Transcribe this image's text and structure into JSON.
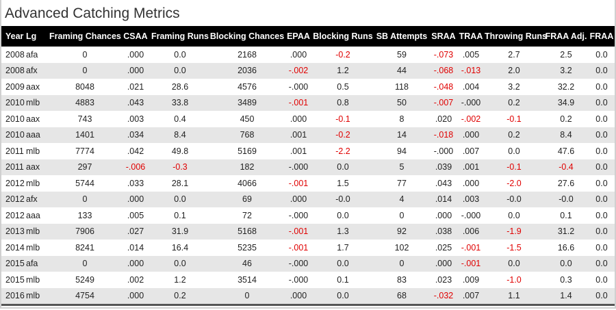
{
  "title": "Advanced Catching Metrics",
  "columns": [
    "Year",
    "Lg",
    "Framing Chances",
    "CSAA",
    "Framing Runs",
    "Blocking Chances",
    "EPAA",
    "Blocking Runs",
    "SB Attempts",
    "SRAA",
    "TRAA",
    "Throwing Runs",
    "FRAA Adj.",
    "FRAA"
  ],
  "rows": [
    [
      "2008",
      "afa",
      "0",
      ".000",
      "0.0",
      "2168",
      ".000",
      "-0.2",
      "59",
      "-.073",
      ".005",
      "2.7",
      "2.5",
      "0.0"
    ],
    [
      "2008",
      "afx",
      "0",
      ".000",
      "0.0",
      "2036",
      "-.002",
      "1.2",
      "44",
      "-.068",
      "-.013",
      "2.0",
      "3.2",
      "0.0"
    ],
    [
      "2009",
      "aax",
      "8048",
      ".021",
      "28.6",
      "4576",
      "-.000",
      "0.5",
      "118",
      "-.048",
      ".004",
      "3.2",
      "32.2",
      "0.0"
    ],
    [
      "2010",
      "mlb",
      "4883",
      ".043",
      "33.8",
      "3489",
      "-.001",
      "0.8",
      "50",
      "-.007",
      "-.000",
      "0.2",
      "34.9",
      "0.0"
    ],
    [
      "2010",
      "aax",
      "743",
      ".003",
      "0.4",
      "450",
      ".000",
      "-0.1",
      "8",
      ".020",
      "-.002",
      "-0.1",
      "0.2",
      "0.0"
    ],
    [
      "2010",
      "aaa",
      "1401",
      ".034",
      "8.4",
      "768",
      ".001",
      "-0.2",
      "14",
      "-.018",
      ".000",
      "0.2",
      "8.4",
      "0.0"
    ],
    [
      "2011",
      "mlb",
      "7774",
      ".042",
      "49.8",
      "5169",
      ".001",
      "-2.2",
      "94",
      "-.000",
      ".007",
      "0.0",
      "47.6",
      "0.0"
    ],
    [
      "2011",
      "aax",
      "297",
      "-.006",
      "-0.3",
      "182",
      "-.000",
      "0.0",
      "5",
      ".039",
      ".001",
      "-0.1",
      "-0.4",
      "0.0"
    ],
    [
      "2012",
      "mlb",
      "5744",
      ".033",
      "28.1",
      "4066",
      "-.001",
      "1.5",
      "77",
      ".043",
      ".000",
      "-2.0",
      "27.6",
      "0.0"
    ],
    [
      "2012",
      "afx",
      "0",
      ".000",
      "0.0",
      "69",
      ".000",
      "-0.0",
      "4",
      ".014",
      ".003",
      "-0.0",
      "-0.0",
      "0.0"
    ],
    [
      "2012",
      "aaa",
      "133",
      ".005",
      "0.1",
      "72",
      "-.000",
      "0.0",
      "0",
      ".000",
      "-.000",
      "0.0",
      "0.1",
      "0.0"
    ],
    [
      "2013",
      "mlb",
      "7906",
      ".027",
      "31.9",
      "5168",
      "-.001",
      "1.3",
      "92",
      ".038",
      ".006",
      "-1.9",
      "31.2",
      "0.0"
    ],
    [
      "2014",
      "mlb",
      "8241",
      ".014",
      "16.4",
      "5235",
      "-.001",
      "1.7",
      "102",
      ".025",
      "-.001",
      "-1.5",
      "16.6",
      "0.0"
    ],
    [
      "2015",
      "afa",
      "0",
      ".000",
      "0.0",
      "46",
      "-.000",
      "0.0",
      "0",
      ".000",
      "-.001",
      "0.0",
      "0.0",
      "0.0"
    ],
    [
      "2015",
      "mlb",
      "5249",
      ".002",
      "1.2",
      "3514",
      "-.000",
      "0.1",
      "83",
      ".023",
      ".009",
      "-1.0",
      "0.3",
      "0.0"
    ],
    [
      "2016",
      "mlb",
      "4754",
      ".000",
      "0.2",
      "0",
      ".000",
      "0.0",
      "68",
      "-.032",
      ".007",
      "1.1",
      "1.4",
      "0.0"
    ]
  ],
  "negative_cells": [
    [
      0,
      7
    ],
    [
      0,
      9
    ],
    [
      1,
      6
    ],
    [
      1,
      9
    ],
    [
      1,
      10
    ],
    [
      2,
      9
    ],
    [
      3,
      6
    ],
    [
      3,
      9
    ],
    [
      4,
      7
    ],
    [
      4,
      10
    ],
    [
      4,
      11
    ],
    [
      5,
      7
    ],
    [
      5,
      9
    ],
    [
      6,
      7
    ],
    [
      7,
      3
    ],
    [
      7,
      4
    ],
    [
      7,
      11
    ],
    [
      7,
      12
    ],
    [
      8,
      6
    ],
    [
      8,
      11
    ],
    [
      11,
      6
    ],
    [
      11,
      11
    ],
    [
      12,
      6
    ],
    [
      12,
      10
    ],
    [
      12,
      11
    ],
    [
      13,
      10
    ],
    [
      14,
      11
    ],
    [
      15,
      9
    ]
  ],
  "colors": {
    "header_bg": "#000000",
    "header_text": "#ffffff",
    "negative": "#e00000",
    "stripe": "#e6e6e6"
  }
}
